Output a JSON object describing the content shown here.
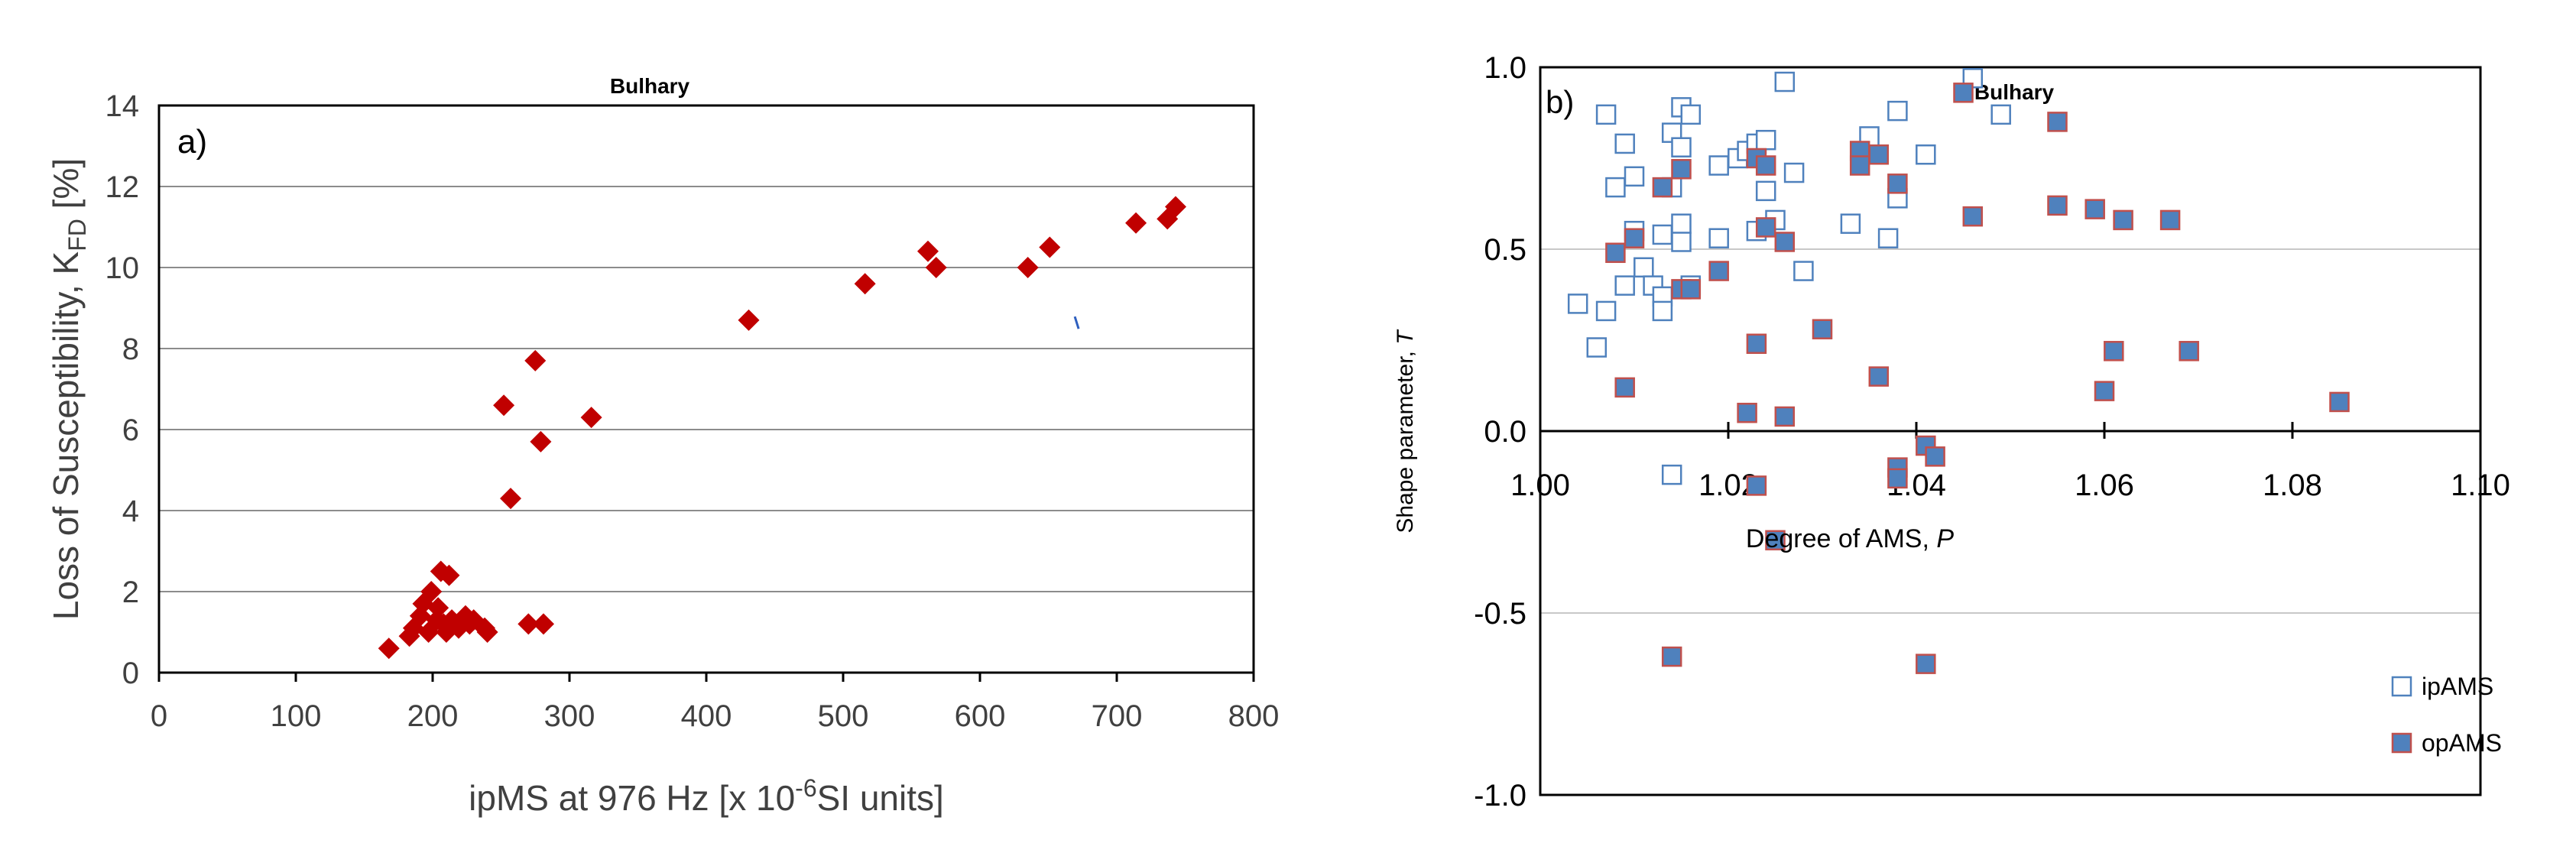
{
  "chart_data": [
    {
      "type": "scatter",
      "title": "Bulhary",
      "panel_label": "a)",
      "ylabel_main": "Loss of Susceptibility, K",
      "ylabel_sub": "FD",
      "ylabel_unit": " [%]",
      "xlabel_main": "ipMS at 976 Hz  [x 10",
      "xlabel_sup": "-6",
      "xlabel_unit": "SI units]",
      "xlim": [
        0,
        800
      ],
      "ylim": [
        0,
        14
      ],
      "xticks": [
        0,
        100,
        200,
        300,
        400,
        500,
        600,
        700,
        800
      ],
      "yticks": [
        0,
        2,
        4,
        6,
        8,
        10,
        12,
        14
      ],
      "colors": {
        "marker": "#c00000",
        "stray": "#2e5fbf",
        "grid": "#8c8c8c"
      },
      "series": [
        {
          "name": "ipMS vs KFD",
          "points": [
            [
              168,
              0.6
            ],
            [
              183,
              0.9
            ],
            [
              186,
              1.1
            ],
            [
              191,
              1.4
            ],
            [
              193,
              1.7
            ],
            [
              197,
              1.0
            ],
            [
              199,
              2.0
            ],
            [
              203,
              1.3
            ],
            [
              204,
              1.6
            ],
            [
              206,
              2.5
            ],
            [
              208,
              1.2
            ],
            [
              210,
              1.0
            ],
            [
              212,
              2.4
            ],
            [
              214,
              1.3
            ],
            [
              219,
              1.1
            ],
            [
              222,
              1.3
            ],
            [
              224,
              1.4
            ],
            [
              227,
              1.2
            ],
            [
              230,
              1.3
            ],
            [
              238,
              1.1
            ],
            [
              240,
              1.0
            ],
            [
              252,
              6.6
            ],
            [
              257,
              4.3
            ],
            [
              270,
              1.2
            ],
            [
              275,
              7.7
            ],
            [
              279,
              5.7
            ],
            [
              281,
              1.2
            ],
            [
              316,
              6.3
            ],
            [
              431,
              8.7
            ],
            [
              516,
              9.6
            ],
            [
              562,
              10.4
            ],
            [
              568,
              10.0
            ],
            [
              635,
              10.0
            ],
            [
              651,
              10.5
            ],
            [
              714,
              11.1
            ],
            [
              737,
              11.2
            ],
            [
              743,
              11.5
            ]
          ]
        }
      ],
      "stray_marker": [
        671,
        8.6
      ]
    },
    {
      "type": "scatter",
      "title": "Bulhary",
      "panel_label": "b)",
      "ylabel_main": "Shape parameter, ",
      "ylabel_italic": "T",
      "xlabel_main": "Degree of AMS, ",
      "xlabel_italic": "P",
      "xlim": [
        1.0,
        1.1
      ],
      "ylim": [
        -1.0,
        1.0
      ],
      "xticks": [
        "1.00",
        "1.02",
        "1.04",
        "1.06",
        "1.08",
        "1.10"
      ],
      "yticks": [
        "-1.0",
        "-0.5",
        "0.0",
        "0.5",
        "1.0"
      ],
      "legend": {
        "position": "bottom-right",
        "entries": [
          "ipAMS",
          "opAMS"
        ]
      },
      "colors": {
        "ip_edge": "#4f81bd",
        "op_fill": "#4f81bd",
        "op_edge": "#c0504d",
        "grid": "#c8c8c8"
      },
      "series": [
        {
          "name": "ipAMS",
          "points": [
            [
              1.004,
              0.35
            ],
            [
              1.006,
              0.23
            ],
            [
              1.007,
              0.33
            ],
            [
              1.007,
              0.87
            ],
            [
              1.008,
              0.67
            ],
            [
              1.009,
              0.79
            ],
            [
              1.009,
              0.4
            ],
            [
              1.01,
              0.7
            ],
            [
              1.01,
              0.55
            ],
            [
              1.011,
              0.45
            ],
            [
              1.012,
              0.4
            ],
            [
              1.013,
              0.37
            ],
            [
              1.013,
              0.54
            ],
            [
              1.013,
              0.33
            ],
            [
              1.014,
              0.67
            ],
            [
              1.014,
              0.82
            ],
            [
              1.015,
              0.89
            ],
            [
              1.015,
              0.78
            ],
            [
              1.015,
              0.57
            ],
            [
              1.015,
              0.52
            ],
            [
              1.016,
              0.87
            ],
            [
              1.016,
              0.4
            ],
            [
              1.019,
              0.73
            ],
            [
              1.019,
              0.53
            ],
            [
              1.021,
              0.75
            ],
            [
              1.022,
              0.77
            ],
            [
              1.023,
              0.79
            ],
            [
              1.023,
              0.55
            ],
            [
              1.024,
              0.8
            ],
            [
              1.024,
              0.66
            ],
            [
              1.025,
              0.58
            ],
            [
              1.026,
              0.96
            ],
            [
              1.027,
              0.71
            ],
            [
              1.028,
              0.44
            ],
            [
              1.033,
              0.57
            ],
            [
              1.035,
              0.81
            ],
            [
              1.037,
              0.53
            ],
            [
              1.038,
              0.88
            ],
            [
              1.038,
              0.64
            ],
            [
              1.041,
              0.76
            ],
            [
              1.046,
              0.97
            ],
            [
              1.049,
              0.87
            ],
            [
              1.014,
              -0.12
            ]
          ]
        },
        {
          "name": "opAMS",
          "points": [
            [
              1.008,
              0.49
            ],
            [
              1.009,
              0.12
            ],
            [
              1.01,
              0.53
            ],
            [
              1.013,
              0.67
            ],
            [
              1.015,
              0.72
            ],
            [
              1.015,
              0.39
            ],
            [
              1.016,
              0.39
            ],
            [
              1.019,
              0.44
            ],
            [
              1.022,
              0.05
            ],
            [
              1.023,
              0.75
            ],
            [
              1.023,
              0.24
            ],
            [
              1.023,
              -0.15
            ],
            [
              1.024,
              0.73
            ],
            [
              1.024,
              0.56
            ],
            [
              1.025,
              -0.3
            ],
            [
              1.026,
              0.52
            ],
            [
              1.026,
              0.04
            ],
            [
              1.03,
              0.28
            ],
            [
              1.034,
              0.77
            ],
            [
              1.034,
              0.73
            ],
            [
              1.036,
              0.76
            ],
            [
              1.036,
              0.15
            ],
            [
              1.038,
              0.68
            ],
            [
              1.038,
              -0.1
            ],
            [
              1.038,
              -0.13
            ],
            [
              1.041,
              -0.04
            ],
            [
              1.042,
              -0.07
            ],
            [
              1.045,
              0.93
            ],
            [
              1.046,
              0.59
            ],
            [
              1.055,
              0.85
            ],
            [
              1.055,
              0.62
            ],
            [
              1.059,
              0.61
            ],
            [
              1.06,
              0.11
            ],
            [
              1.061,
              0.22
            ],
            [
              1.062,
              0.58
            ],
            [
              1.067,
              0.58
            ],
            [
              1.069,
              0.22
            ],
            [
              1.085,
              0.08
            ],
            [
              1.014,
              -0.62
            ],
            [
              1.041,
              -0.64
            ]
          ]
        }
      ]
    }
  ]
}
